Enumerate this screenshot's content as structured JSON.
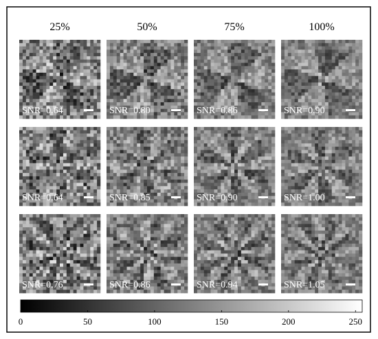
{
  "columns": [
    "25%",
    "50%",
    "75%",
    "100%"
  ],
  "rows": [
    [
      "SNR=0.64",
      "SNR=0.80",
      "SNR=0.86",
      "SNR=0.90"
    ],
    [
      "SNR=0.64",
      "SNR=0.85",
      "SNR=0.90",
      "SNR=1.00"
    ],
    [
      "SNR=0.76",
      "SNR=0.86",
      "SNR=0.94",
      "SNR=1.05"
    ]
  ],
  "colorbar": {
    "range": [
      0,
      255
    ],
    "ticks": [
      0,
      50,
      100,
      150,
      200,
      250
    ]
  }
}
